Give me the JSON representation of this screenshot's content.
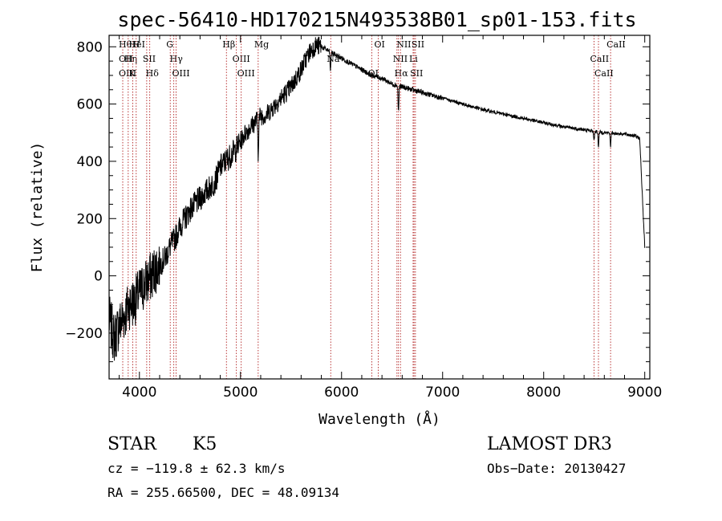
{
  "chart_data": {
    "type": "line",
    "title": "spec-56410-HD170215N493538B01_sp01-153.fits",
    "xlabel": "Wavelength (Å)",
    "ylabel": "Flux (relative)",
    "xlim": [
      3700,
      9050
    ],
    "ylim": [
      -360,
      840
    ],
    "xticks": [
      4000,
      5000,
      6000,
      7000,
      8000,
      9000
    ],
    "yticks": [
      -200,
      0,
      200,
      400,
      600,
      800
    ],
    "series": [
      {
        "name": "flux",
        "x": [
          3700,
          3750,
          3800,
          3850,
          3900,
          3950,
          4000,
          4050,
          4100,
          4150,
          4200,
          4250,
          4300,
          4350,
          4400,
          4450,
          4500,
          4550,
          4600,
          4650,
          4700,
          4750,
          4800,
          4850,
          4900,
          4950,
          5000,
          5050,
          5100,
          5150,
          5200,
          5250,
          5300,
          5350,
          5400,
          5450,
          5500,
          5550,
          5600,
          5650,
          5700,
          5750,
          5800,
          5850,
          5900,
          5950,
          6000,
          6100,
          6200,
          6300,
          6400,
          6500,
          6600,
          6700,
          6800,
          6900,
          7000,
          7200,
          7400,
          7600,
          7800,
          8000,
          8200,
          8400,
          8500,
          8600,
          8700,
          8800,
          8900,
          8950,
          9000
        ],
        "values": [
          -150,
          -220,
          -170,
          -140,
          -100,
          -90,
          -60,
          -30,
          -10,
          20,
          40,
          60,
          100,
          130,
          170,
          200,
          230,
          250,
          270,
          290,
          310,
          330,
          380,
          400,
          420,
          440,
          470,
          500,
          520,
          540,
          560,
          560,
          580,
          600,
          620,
          640,
          660,
          690,
          720,
          760,
          790,
          805,
          800,
          790,
          780,
          770,
          760,
          740,
          720,
          700,
          690,
          670,
          660,
          650,
          640,
          630,
          620,
          600,
          580,
          565,
          550,
          535,
          520,
          510,
          505,
          500,
          498,
          495,
          490,
          480,
          100
        ]
      }
    ],
    "absorption_dips": [
      {
        "x": 5175,
        "depth": 120
      },
      {
        "x": 5890,
        "depth": 70
      },
      {
        "x": 6563,
        "depth": 90
      },
      {
        "x": 8498,
        "depth": 35
      },
      {
        "x": 8542,
        "depth": 50
      },
      {
        "x": 8662,
        "depth": 45
      }
    ],
    "line_markers": [
      {
        "x": 3835,
        "labels": [
          "Hθ",
          "OII",
          "OIII"
        ]
      },
      {
        "x": 3889,
        "labels": [
          "Hη"
        ]
      },
      {
        "x": 3934,
        "labels": [
          "K",
          "HeI"
        ]
      },
      {
        "x": 3968,
        "labels": [
          "H"
        ]
      },
      {
        "x": 4072,
        "labels": [
          "SII"
        ]
      },
      {
        "x": 4102,
        "labels": [
          "Hδ"
        ]
      },
      {
        "x": 4305,
        "labels": [
          "G"
        ]
      },
      {
        "x": 4340,
        "labels": [
          "Hγ"
        ]
      },
      {
        "x": 4363,
        "labels": [
          "OIII"
        ]
      },
      {
        "x": 4861,
        "labels": [
          "Hβ"
        ]
      },
      {
        "x": 4959,
        "labels": [
          "OIII"
        ]
      },
      {
        "x": 5007,
        "labels": [
          "OIII"
        ]
      },
      {
        "x": 5175,
        "labels": [
          "Mg"
        ]
      },
      {
        "x": 5893,
        "labels": [
          "Na"
        ]
      },
      {
        "x": 6300,
        "labels": [
          "OI"
        ]
      },
      {
        "x": 6363,
        "labels": [
          "OI"
        ]
      },
      {
        "x": 6548,
        "labels": [
          "NII"
        ]
      },
      {
        "x": 6563,
        "labels": [
          "Hα"
        ]
      },
      {
        "x": 6583,
        "labels": [
          "NII"
        ]
      },
      {
        "x": 6708,
        "labels": [
          "Li"
        ]
      },
      {
        "x": 6717,
        "labels": [
          "SII"
        ]
      },
      {
        "x": 6731,
        "labels": [
          "SII"
        ]
      },
      {
        "x": 8498,
        "labels": [
          "CaII"
        ]
      },
      {
        "x": 8542,
        "labels": [
          "CaII"
        ]
      },
      {
        "x": 8662,
        "labels": [
          "CaII"
        ]
      }
    ]
  },
  "info": {
    "object_class": "STAR",
    "subclass": "K5",
    "survey": "LAMOST DR3",
    "cz": "cz = −119.8 ± 62.3 km/s",
    "obs_date": "Obs−Date: 20130427",
    "coords": "RA = 255.66500, DEC =  48.09134"
  },
  "colors": {
    "spectrum": "#000000",
    "marker": "#b22222",
    "axis": "#000000"
  }
}
